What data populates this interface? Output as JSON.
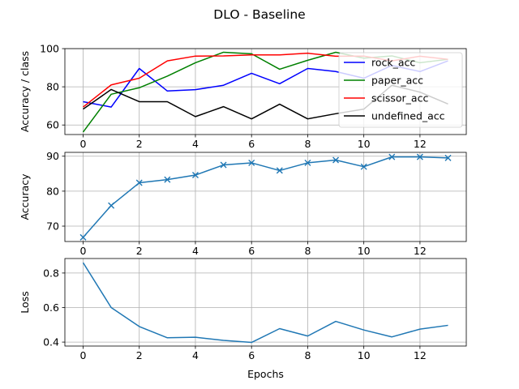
{
  "figure": {
    "title": "DLO - Baseline"
  },
  "chart_data": [
    {
      "type": "line",
      "title": "",
      "xlabel": "",
      "ylabel": "Accuracy / class",
      "x": [
        0,
        1,
        2,
        3,
        4,
        5,
        6,
        7,
        8,
        9,
        10,
        11,
        12,
        13
      ],
      "xlim": [
        -0.65,
        13.65
      ],
      "ylim": [
        55,
        100
      ],
      "xticks": [
        0,
        2,
        4,
        6,
        8,
        10,
        12
      ],
      "yticks": [
        60,
        80,
        100
      ],
      "grid": true,
      "legend": "top-right",
      "series": [
        {
          "name": "rock_acc",
          "color": "#0000ff",
          "values": [
            72.2,
            69.4,
            89.6,
            77.8,
            78.5,
            80.8,
            87.1,
            81.6,
            89.6,
            88.0,
            84.5,
            91.2,
            88.0,
            93.6
          ]
        },
        {
          "name": "paper_acc",
          "color": "#008000",
          "values": [
            56.3,
            76.1,
            79.5,
            85.6,
            92.6,
            98.1,
            97.3,
            89.2,
            93.9,
            98.1,
            95.0,
            96.2,
            92.6,
            94.4
          ]
        },
        {
          "name": "scissor_acc",
          "color": "#ff0000",
          "values": [
            69.4,
            81.0,
            84.5,
            93.6,
            96.1,
            96.2,
            96.7,
            96.7,
            97.6,
            96.0,
            96.1,
            93.6,
            96.0,
            94.4
          ]
        },
        {
          "name": "undefined_acc",
          "color": "#000000",
          "values": [
            68.3,
            78.6,
            72.2,
            72.2,
            64.4,
            69.6,
            63.2,
            70.9,
            63.2,
            65.9,
            68.3,
            80.8,
            77.2,
            71.0
          ]
        }
      ]
    },
    {
      "type": "line",
      "title": "",
      "xlabel": "",
      "ylabel": "Accuracy",
      "x": [
        0,
        1,
        2,
        3,
        4,
        5,
        6,
        7,
        8,
        9,
        10,
        11,
        12,
        13
      ],
      "xlim": [
        -0.65,
        13.65
      ],
      "ylim": [
        65.6,
        91.1
      ],
      "xticks": [
        0,
        2,
        4,
        6,
        8,
        10,
        12
      ],
      "yticks": [
        70,
        80,
        90
      ],
      "grid": true,
      "marker": "x",
      "series": [
        {
          "color": "#1f77b4",
          "values": [
            66.8,
            75.9,
            82.4,
            83.3,
            84.6,
            87.5,
            88.1,
            85.9,
            88.1,
            88.9,
            87.0,
            89.8,
            89.8,
            89.5
          ]
        }
      ]
    },
    {
      "type": "line",
      "title": "",
      "xlabel": "Epochs",
      "ylabel": "Loss",
      "x": [
        0,
        1,
        2,
        3,
        4,
        5,
        6,
        7,
        8,
        9,
        10,
        11,
        12,
        13
      ],
      "xlim": [
        -0.65,
        13.65
      ],
      "ylim": [
        0.377,
        0.884
      ],
      "xticks": [
        0,
        2,
        4,
        6,
        8,
        10,
        12
      ],
      "yticks": [
        0.4,
        0.6,
        0.8
      ],
      "grid": true,
      "series": [
        {
          "color": "#1f77b4",
          "values": [
            0.86,
            0.6,
            0.49,
            0.425,
            0.428,
            0.41,
            0.398,
            0.478,
            0.435,
            0.52,
            0.47,
            0.43,
            0.475,
            0.497
          ]
        }
      ]
    }
  ]
}
